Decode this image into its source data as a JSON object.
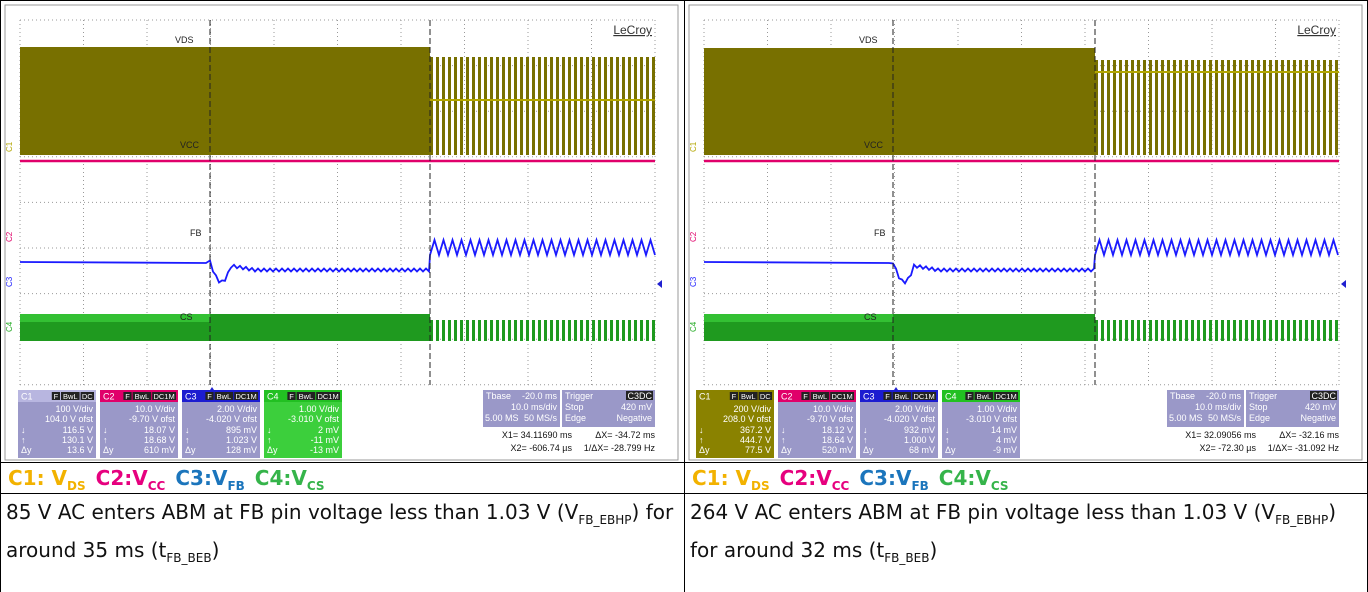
{
  "panels": [
    {
      "brand": "LeCroy",
      "traces": [
        "VDS",
        "VCC",
        "FB",
        "CS"
      ],
      "markers": [
        "C1",
        "C2",
        "C3",
        "C4"
      ],
      "channels": [
        {
          "name": "C1",
          "flags": [
            "F",
            "BwL",
            "DC"
          ],
          "scale": "100 V/div",
          "offset": "104.0 V ofst",
          "rows": [
            [
              "↓",
              "116.5 V"
            ],
            [
              "↑",
              "130.1 V"
            ],
            [
              "Δy",
              "13.6 V"
            ]
          ]
        },
        {
          "name": "C2",
          "flags": [
            "F",
            "BwL",
            "DC1M"
          ],
          "scale": "10.0 V/div",
          "offset": "-9.70 V ofst",
          "rows": [
            [
              "↓",
              "18.07 V"
            ],
            [
              "↑",
              "18.68 V"
            ],
            [
              "Δy",
              "610 mV"
            ]
          ]
        },
        {
          "name": "C3",
          "flags": [
            "F",
            "BwL",
            "DC1M"
          ],
          "scale": "2.00 V/div",
          "offset": "-4.020 V ofst",
          "rows": [
            [
              "↓",
              "895 mV"
            ],
            [
              "↑",
              "1.023 V"
            ],
            [
              "Δy",
              "128 mV"
            ]
          ]
        },
        {
          "name": "C4",
          "flags": [
            "F",
            "BwL",
            "DC1M"
          ],
          "scale": "1.00 V/div",
          "offset": "-3.010 V ofst",
          "rows": [
            [
              "↓",
              "2 mV"
            ],
            [
              "↑",
              "-11 mV"
            ],
            [
              "Δy",
              "-13 mV"
            ]
          ]
        }
      ],
      "timebase": {
        "label": "Tbase",
        "delay": "-20.0 ms",
        "div": "10.0 ms/div",
        "samples": "5.00 MS",
        "rate": "50 MS/s"
      },
      "trigger": {
        "label": "Trigger",
        "source": "C3DC",
        "mode": "Stop",
        "level": "420 mV",
        "type": "Edge",
        "slope": "Negative"
      },
      "cursors": {
        "x1": "X1= 34.11690 ms",
        "dx": "ΔX= -34.72 ms",
        "x2": "X2= -606.74 µs",
        "inv": "1/ΔX= -28.799 Hz"
      },
      "legend": [
        {
          "text": "C1: V",
          "sub": "DS"
        },
        {
          "text": "C2:V",
          "sub": "CC"
        },
        {
          "text": "C3:V",
          "sub": "FB"
        },
        {
          "text": "C4:V",
          "sub": "CS"
        }
      ],
      "caption": [
        {
          "text": "85 V AC enters ABM at FB pin voltage less than 1.03 V (V"
        },
        {
          "sub": "FB_EBHP"
        },
        {
          "text": ") for around 35 ms (t"
        },
        {
          "sub": "FB_BEB"
        },
        {
          "text": ")"
        }
      ]
    },
    {
      "brand": "LeCroy",
      "traces": [
        "VDS",
        "VCC",
        "FB",
        "CS"
      ],
      "markers": [
        "C1",
        "C2",
        "C3",
        "C4"
      ],
      "channels": [
        {
          "name": "C1",
          "flags": [
            "F",
            "BwL",
            "DC"
          ],
          "scale": "200 V/div",
          "offset": "208.0 V ofst",
          "rows": [
            [
              "↓",
              "367.2 V"
            ],
            [
              "↑",
              "444.7 V"
            ],
            [
              "Δy",
              "77.5 V"
            ]
          ]
        },
        {
          "name": "C2",
          "flags": [
            "F",
            "BwL",
            "DC1M"
          ],
          "scale": "10.0 V/div",
          "offset": "-9.70 V ofst",
          "rows": [
            [
              "↓",
              "18.12 V"
            ],
            [
              "↑",
              "18.64 V"
            ],
            [
              "Δy",
              "520 mV"
            ]
          ]
        },
        {
          "name": "C3",
          "flags": [
            "F",
            "BwL",
            "DC1M"
          ],
          "scale": "2.00 V/div",
          "offset": "-4.020 V ofst",
          "rows": [
            [
              "↓",
              "932 mV"
            ],
            [
              "↑",
              "1.000 V"
            ],
            [
              "Δy",
              "68 mV"
            ]
          ]
        },
        {
          "name": "C4",
          "flags": [
            "F",
            "BwL",
            "DC1M"
          ],
          "scale": "1.00 V/div",
          "offset": "-3.010 V ofst",
          "rows": [
            [
              "↓",
              "14 mV"
            ],
            [
              "↑",
              "4 mV"
            ],
            [
              "Δy",
              "-9 mV"
            ]
          ]
        }
      ],
      "timebase": {
        "label": "Tbase",
        "delay": "-20.0 ms",
        "div": "10.0 ms/div",
        "samples": "5.00 MS",
        "rate": "50 MS/s"
      },
      "trigger": {
        "label": "Trigger",
        "source": "C3DC",
        "mode": "Stop",
        "level": "420 mV",
        "type": "Edge",
        "slope": "Negative"
      },
      "cursors": {
        "x1": "X1= 32.09056 ms",
        "dx": "ΔX= -32.16 ms",
        "x2": "X2= -72.30 µs",
        "inv": "1/ΔX= -31.092 Hz"
      },
      "legend": [
        {
          "text": "C1: V",
          "sub": "DS"
        },
        {
          "text": "C2:V",
          "sub": "CC"
        },
        {
          "text": "C3:V",
          "sub": "FB"
        },
        {
          "text": "C4:V",
          "sub": "CS"
        }
      ],
      "caption": [
        {
          "text": "264 V AC enters ABM at FB pin voltage less than 1.03 V (V"
        },
        {
          "sub": "FB_EBHP"
        },
        {
          "text": ") for around 32 ms (t"
        },
        {
          "sub": "FB_BEB"
        },
        {
          "text": ")"
        }
      ]
    }
  ]
}
